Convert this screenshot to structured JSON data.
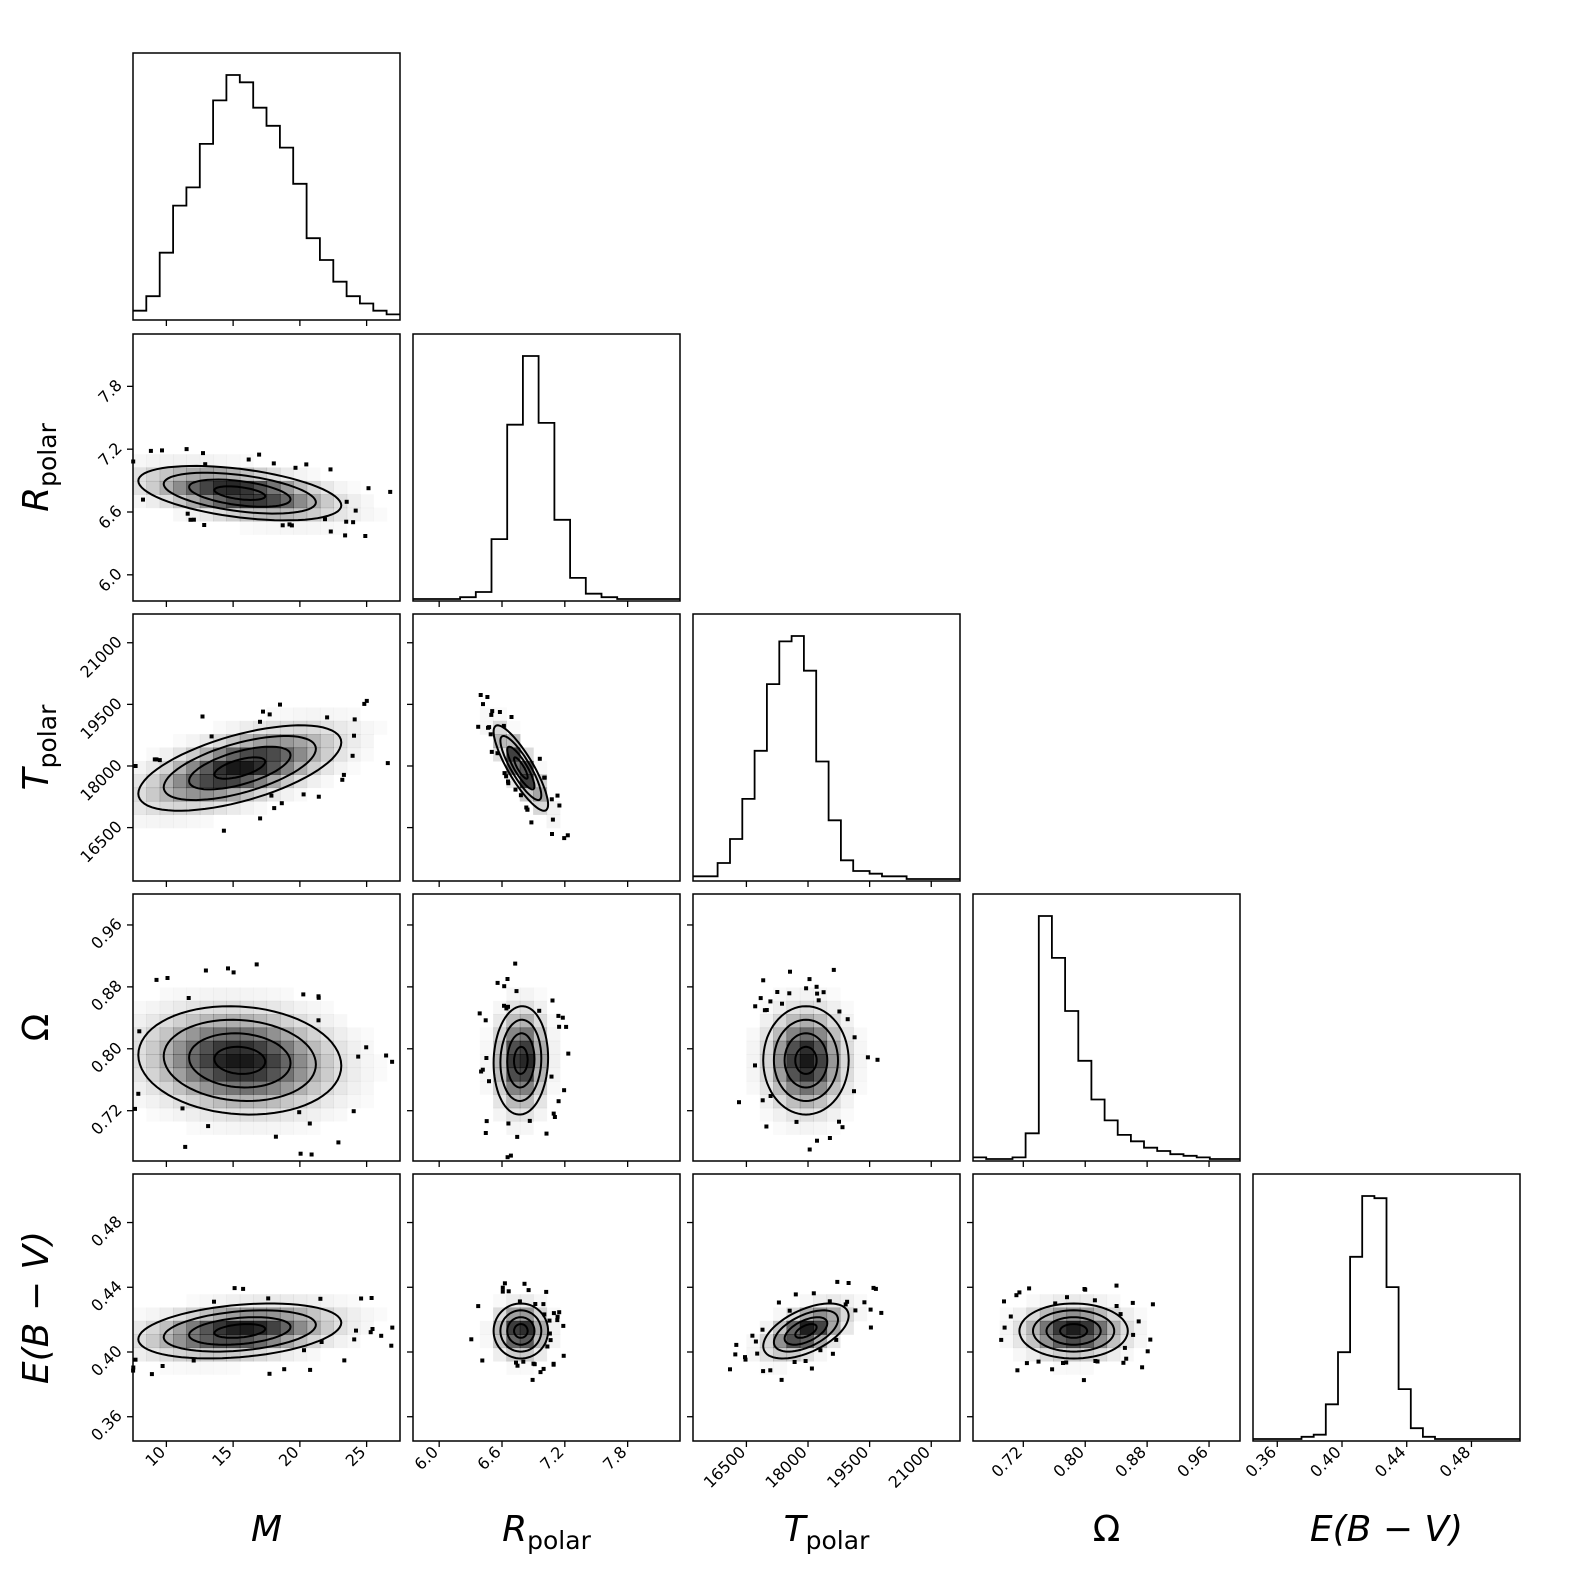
{
  "chart_data": {
    "type": "corner",
    "colors": {
      "line": "#000000",
      "density": "#000000",
      "background": "#ffffff"
    },
    "parameters": [
      {
        "key": "M",
        "label": "M",
        "label_main": "M",
        "label_sub": "",
        "range": [
          7.5,
          27.5
        ],
        "ticks": [
          10,
          15,
          20,
          25
        ],
        "tick_labels": [
          "10",
          "15",
          "20",
          "25"
        ],
        "mean": 15.5,
        "sd": 3.8
      },
      {
        "key": "R_polar",
        "label": "R_polar",
        "label_main": "R",
        "label_sub": "polar",
        "range": [
          5.75,
          8.3
        ],
        "ticks": [
          6.0,
          6.6,
          7.2,
          7.8
        ],
        "tick_labels": [
          "6.0",
          "6.6",
          "7.2",
          "7.8"
        ],
        "mean": 6.78,
        "sd": 0.13
      },
      {
        "key": "T_polar",
        "label": "T_polar",
        "label_main": "T",
        "label_sub": "polar",
        "range": [
          15200,
          21700
        ],
        "ticks": [
          16500,
          18000,
          19500,
          21000
        ],
        "tick_labels": [
          "16500",
          "18000",
          "19500",
          "21000"
        ],
        "mean": 17950,
        "sd": 520
      },
      {
        "key": "Omega",
        "label": "Ω",
        "label_main": "Ω",
        "label_sub": "",
        "range": [
          0.655,
          1.0
        ],
        "ticks": [
          0.72,
          0.8,
          0.88,
          0.96
        ],
        "tick_labels": [
          "0.72",
          "0.80",
          "0.88",
          "0.96"
        ],
        "mean": 0.785,
        "sd": 0.035
      },
      {
        "key": "EBV",
        "label": "E(B − V)",
        "label_main": "E(B − V)",
        "label_sub": "",
        "range": [
          0.345,
          0.51
        ],
        "ticks": [
          0.36,
          0.4,
          0.44,
          0.48
        ],
        "tick_labels": [
          "0.36",
          "0.40",
          "0.44",
          "0.48"
        ],
        "mean": 0.413,
        "sd": 0.0085
      }
    ],
    "histograms": [
      {
        "param": "M",
        "bin_edges": [
          7.5,
          8.5,
          9.5,
          10.5,
          11.5,
          12.5,
          13.5,
          14.5,
          15.5,
          16.5,
          17.5,
          18.5,
          19.5,
          20.5,
          21.5,
          22.5,
          23.5,
          24.5,
          25.5,
          26.5,
          27.5
        ],
        "counts": [
          2,
          6,
          18,
          31,
          36,
          48,
          60,
          67,
          65,
          58,
          53,
          47,
          37,
          22,
          16,
          10,
          6,
          4,
          2,
          1
        ]
      },
      {
        "param": "R_polar",
        "bin_edges": [
          5.75,
          5.9,
          6.05,
          6.2,
          6.35,
          6.5,
          6.65,
          6.8,
          6.95,
          7.1,
          7.25,
          7.4,
          7.55,
          7.7,
          7.85,
          8.0,
          8.15,
          8.3
        ],
        "counts": [
          0,
          0,
          0,
          1,
          4,
          34,
          99,
          138,
          100,
          45,
          12,
          3,
          1,
          0,
          0,
          0,
          0
        ]
      },
      {
        "param": "T_polar",
        "bin_edges": [
          15200,
          15500,
          15800,
          16100,
          16400,
          16700,
          17000,
          17300,
          17600,
          17900,
          18200,
          18500,
          18800,
          19100,
          19500,
          19800,
          20100,
          20400,
          20700,
          21000,
          21300,
          21700
        ],
        "counts": [
          1,
          1,
          6,
          15,
          30,
          48,
          73,
          89,
          91,
          78,
          44,
          22,
          7,
          3,
          2,
          1,
          1,
          0,
          0,
          0,
          0
        ]
      },
      {
        "param": "Omega",
        "bin_edges": [
          0.655,
          0.672,
          0.689,
          0.706,
          0.723,
          0.74,
          0.757,
          0.774,
          0.791,
          0.808,
          0.825,
          0.842,
          0.859,
          0.876,
          0.893,
          0.91,
          0.927,
          0.944,
          0.961,
          0.978,
          1.0
        ],
        "counts": [
          1,
          0,
          0,
          1,
          16,
          151,
          125,
          92,
          61,
          37,
          24,
          15,
          11,
          7,
          5,
          3,
          2,
          1,
          0,
          0
        ]
      },
      {
        "param": "EBV",
        "bin_edges": [
          0.345,
          0.3525,
          0.36,
          0.3675,
          0.375,
          0.3825,
          0.39,
          0.3975,
          0.405,
          0.4125,
          0.42,
          0.4275,
          0.435,
          0.4425,
          0.45,
          0.4575,
          0.465,
          0.4725,
          0.48,
          0.4875,
          0.495,
          0.5025,
          0.51
        ],
        "counts": [
          0,
          0,
          0,
          0,
          1,
          2,
          16,
          40,
          84,
          112,
          111,
          70,
          23,
          5,
          1,
          0,
          0,
          0,
          0,
          0,
          0,
          0
        ]
      }
    ],
    "correlations": [
      {
        "x": "M",
        "y": "R_polar",
        "rho": -0.45
      },
      {
        "x": "M",
        "y": "T_polar",
        "rho": 0.6
      },
      {
        "x": "M",
        "y": "Omega",
        "rho": -0.1
      },
      {
        "x": "M",
        "y": "EBV",
        "rho": 0.3
      },
      {
        "x": "R_polar",
        "y": "T_polar",
        "rho": -0.85
      },
      {
        "x": "R_polar",
        "y": "Omega",
        "rho": 0.05
      },
      {
        "x": "R_polar",
        "y": "EBV",
        "rho": 0.0
      },
      {
        "x": "T_polar",
        "y": "Omega",
        "rho": 0.0
      },
      {
        "x": "T_polar",
        "y": "EBV",
        "rho": 0.55
      },
      {
        "x": "Omega",
        "y": "EBV",
        "rho": 0.0
      }
    ],
    "contour_levels_sigma": [
      0.5,
      1.0,
      1.5,
      2.0
    ],
    "grid": false,
    "legend": "none"
  }
}
